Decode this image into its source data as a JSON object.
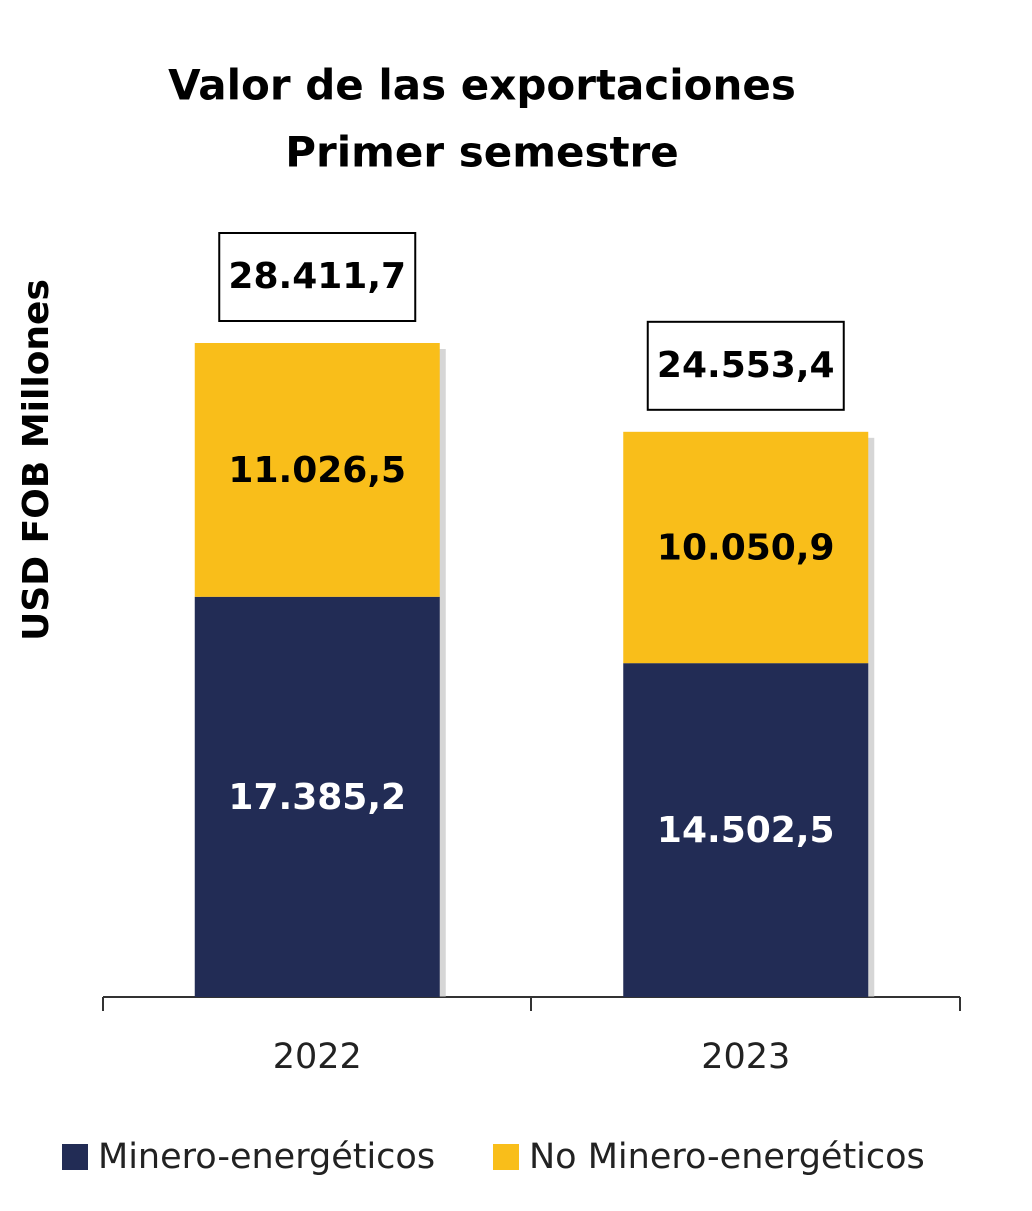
{
  "chart_data": {
    "type": "stacked_bar",
    "title": "Valor de las exportaciones",
    "subtitle": "Primer semestre",
    "y_label": "USD FOB Millones",
    "categories": [
      "2022",
      "2023"
    ],
    "series": [
      {
        "name": "Minero-energéticos",
        "color": "#222c55",
        "values": [
          17385.2,
          14502.5
        ],
        "value_labels": [
          "17.385,2",
          "14.502,5"
        ]
      },
      {
        "name": "No Minero-energéticos",
        "color": "#f9be1a",
        "values": [
          11026.5,
          10050.9
        ],
        "value_labels": [
          "11.026,5",
          "10.050,9"
        ]
      }
    ],
    "totals": [
      28411.7,
      24553.4
    ],
    "totals_labels": [
      "28.411,7",
      "24.553,4"
    ]
  }
}
